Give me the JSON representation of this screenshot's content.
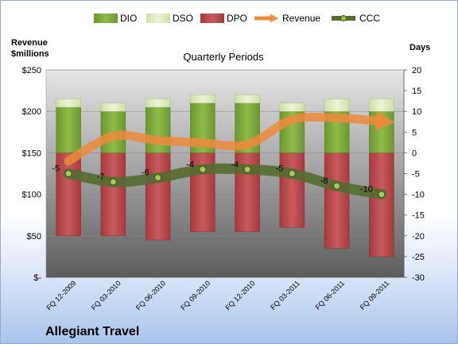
{
  "chart_data": {
    "type": "bar",
    "title": "Quarterly Periods",
    "company": "Allegiant Travel",
    "left_axis_label_line1": "Revenue",
    "left_axis_label_line2": "$millions",
    "right_axis_label": "Days",
    "categories": [
      "FQ 12-2009",
      "FQ 03-2010",
      "FQ 06-2010",
      "FQ 09-2010",
      "FQ 12-2010",
      "FQ 03-2011",
      "FQ 06-2011",
      "FQ 09-2011"
    ],
    "left_ticks": [
      "$250",
      "$200",
      "$150",
      "$100",
      "$50",
      "$-"
    ],
    "left_range": [
      0,
      250
    ],
    "right_range": [
      -30,
      20
    ],
    "right_ticks": [
      "20",
      "15",
      "10",
      "5",
      "0",
      "-5",
      "-10",
      "-15",
      "-20",
      "-25",
      "-30"
    ],
    "grid": true,
    "legend_position": "top",
    "series": [
      {
        "name": "DIO",
        "color": "#7aa33a",
        "axis": "right",
        "values": [
          11,
          10,
          11,
          12,
          12,
          10,
          10,
          10
        ]
      },
      {
        "name": "DSO",
        "color": "#d8e6b8",
        "axis": "right",
        "values": [
          2,
          2,
          2,
          2,
          2,
          2,
          3,
          3
        ]
      },
      {
        "name": "DPO",
        "color": "#b7474a",
        "axis": "right",
        "values": [
          -20,
          -20,
          -21,
          -19,
          -19,
          -18,
          -23,
          -25
        ]
      },
      {
        "name": "Revenue",
        "color": "#ee8a3c",
        "axis": "left",
        "values": [
          140,
          170,
          165,
          162,
          160,
          190,
          192,
          188
        ]
      },
      {
        "name": "CCC",
        "color": "#556b2f",
        "axis": "right",
        "values": [
          -5,
          -7,
          -6,
          -4,
          -4,
          -5,
          -8,
          -10
        ],
        "labels": [
          "-5",
          "-7",
          "-6",
          "-4",
          "-4",
          "-5",
          "-8",
          "-10"
        ]
      }
    ]
  }
}
